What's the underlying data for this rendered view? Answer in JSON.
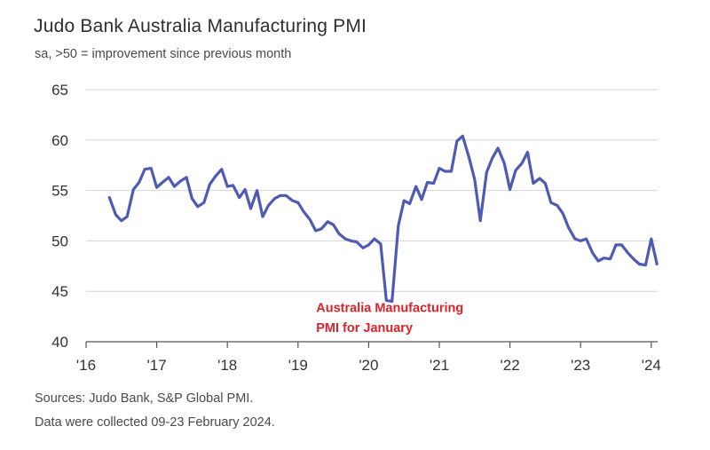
{
  "title": "Judo Bank Australia Manufacturing PMI",
  "subtitle": "sa, >50 = improvement since previous month",
  "source_line_1": "Sources: Judo Bank, S&P Global PMI.",
  "source_line_2": "Data were collected 09-23 February 2024.",
  "colors": {
    "series": "#4f5bb3",
    "grid": "#d6d6d6",
    "axis": "#555555",
    "annotation": "#d9232a"
  },
  "chart_data": {
    "type": "line",
    "title": "Judo Bank Australia Manufacturing PMI",
    "subtitle": "sa, >50 = improvement since previous month",
    "xlabel": "",
    "ylabel": "",
    "ylim": [
      40,
      65
    ],
    "xlim": [
      2016.0,
      2024.1
    ],
    "grid": "horizontal",
    "yticks": [
      40,
      45,
      50,
      55,
      60,
      65
    ],
    "xticks": [
      {
        "value": 2016,
        "label": "'16"
      },
      {
        "value": 2017,
        "label": "'17"
      },
      {
        "value": 2018,
        "label": "'18"
      },
      {
        "value": 2019,
        "label": "'19"
      },
      {
        "value": 2020,
        "label": "'20"
      },
      {
        "value": 2021,
        "label": "'21"
      },
      {
        "value": 2022,
        "label": "'22"
      },
      {
        "value": 2023,
        "label": "'23"
      },
      {
        "value": 2024,
        "label": "'24"
      }
    ],
    "annotations": [
      {
        "text": "Australia Manufacturing",
        "x": 2020.4,
        "y": 43.4
      },
      {
        "text": "PMI for January",
        "x": 2020.4,
        "y": 41.4
      }
    ],
    "series": [
      {
        "name": "Australia Manufacturing PMI",
        "x": [
          2016.33,
          2016.42,
          2016.5,
          2016.58,
          2016.67,
          2016.75,
          2016.83,
          2016.92,
          2017.0,
          2017.08,
          2017.17,
          2017.25,
          2017.33,
          2017.42,
          2017.5,
          2017.58,
          2017.67,
          2017.75,
          2017.83,
          2017.92,
          2018.0,
          2018.08,
          2018.17,
          2018.25,
          2018.33,
          2018.42,
          2018.5,
          2018.58,
          2018.67,
          2018.75,
          2018.83,
          2018.92,
          2019.0,
          2019.08,
          2019.17,
          2019.25,
          2019.33,
          2019.42,
          2019.5,
          2019.58,
          2019.67,
          2019.75,
          2019.83,
          2019.92,
          2020.0,
          2020.08,
          2020.17,
          2020.25,
          2020.33,
          2020.42,
          2020.5,
          2020.58,
          2020.67,
          2020.75,
          2020.83,
          2020.92,
          2021.0,
          2021.08,
          2021.17,
          2021.25,
          2021.33,
          2021.42,
          2021.5,
          2021.58,
          2021.67,
          2021.75,
          2021.83,
          2021.92,
          2022.0,
          2022.08,
          2022.17,
          2022.25,
          2022.33,
          2022.42,
          2022.5,
          2022.58,
          2022.67,
          2022.75,
          2022.83,
          2022.92,
          2023.0,
          2023.08,
          2023.17,
          2023.25,
          2023.33,
          2023.42,
          2023.5,
          2023.58,
          2023.67,
          2023.75,
          2023.83,
          2023.92,
          2024.0,
          2024.08
        ],
        "values": [
          54.3,
          52.6,
          52.0,
          52.4,
          55.1,
          55.8,
          57.1,
          57.2,
          55.3,
          55.8,
          56.3,
          55.4,
          55.9,
          56.3,
          54.2,
          53.4,
          53.8,
          55.6,
          56.4,
          57.1,
          55.4,
          55.5,
          54.3,
          55.1,
          53.2,
          55.0,
          52.4,
          53.5,
          54.2,
          54.5,
          54.5,
          54.0,
          53.8,
          52.9,
          52.1,
          51.0,
          51.2,
          51.9,
          51.6,
          50.7,
          50.2,
          50.0,
          49.9,
          49.3,
          49.6,
          50.2,
          49.7,
          44.1,
          44.0,
          51.5,
          54.0,
          53.7,
          55.4,
          54.1,
          55.8,
          55.7,
          57.2,
          56.9,
          56.9,
          59.9,
          60.4,
          58.3,
          56.1,
          52.0,
          56.8,
          58.2,
          59.2,
          57.7,
          55.1,
          57.0,
          57.7,
          58.8,
          55.7,
          56.2,
          55.7,
          53.8,
          53.5,
          52.7,
          51.3,
          50.2,
          50.0,
          50.2,
          48.8,
          48.0,
          48.3,
          48.2,
          49.6,
          49.6,
          48.8,
          48.2,
          47.7,
          47.6,
          50.2,
          47.7
        ]
      }
    ]
  }
}
